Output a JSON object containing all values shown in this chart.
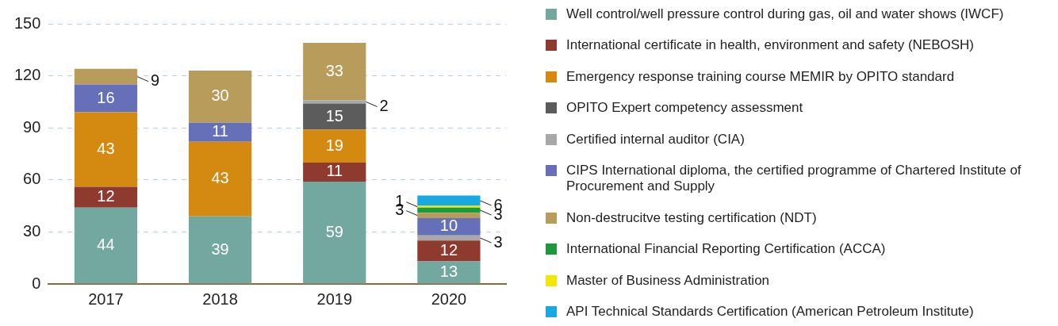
{
  "chart_data": {
    "type": "bar",
    "stacked": true,
    "categories": [
      "2017",
      "2018",
      "2019",
      "2020"
    ],
    "series": [
      {
        "name": "Well control/well pressure control during gas, oil and water shows (IWCF)",
        "color": "#72a8a0",
        "values": [
          44,
          39,
          59,
          13
        ]
      },
      {
        "name": "International certificate in health, environment and safety (NEBOSH)",
        "color": "#8f3a2e",
        "values": [
          12,
          null,
          11,
          12
        ]
      },
      {
        "name": "Emergency response training course MEMIR by OPITO standard",
        "color": "#d48a10",
        "values": [
          43,
          43,
          19,
          null
        ]
      },
      {
        "name": "OPITO Expert competency assessment",
        "color": "#5c5c5c",
        "values": [
          null,
          null,
          15,
          null
        ]
      },
      {
        "name": "Certified internal auditor (CIA)",
        "color": "#a8a8a8",
        "values": [
          null,
          null,
          2,
          3
        ]
      },
      {
        "name": "CIPS International diploma, the certified programme of Chartered Institute of Procurement and Supply",
        "color": "#6670b8",
        "values": [
          16,
          11,
          null,
          10
        ]
      },
      {
        "name": "Non-destrucitve testing certification (NDT)",
        "color": "#b89c5c",
        "values": [
          9,
          30,
          33,
          3
        ]
      },
      {
        "name": "International Financial Reporting Certification (ACCA)",
        "color": "#1a9a3a",
        "values": [
          null,
          null,
          null,
          3
        ]
      },
      {
        "name": "Master of Business Administration",
        "color": "#f5e600",
        "values": [
          null,
          null,
          null,
          1
        ]
      },
      {
        "name": "API Technical Standards Certification (American Petroleum Institute)",
        "color": "#1aa8e0",
        "values": [
          null,
          null,
          null,
          6
        ]
      }
    ],
    "ylim": [
      0,
      150
    ],
    "yticks": [
      0,
      30,
      60,
      90,
      120,
      150
    ],
    "grid": "y",
    "legend": "right",
    "data_labels": true
  }
}
